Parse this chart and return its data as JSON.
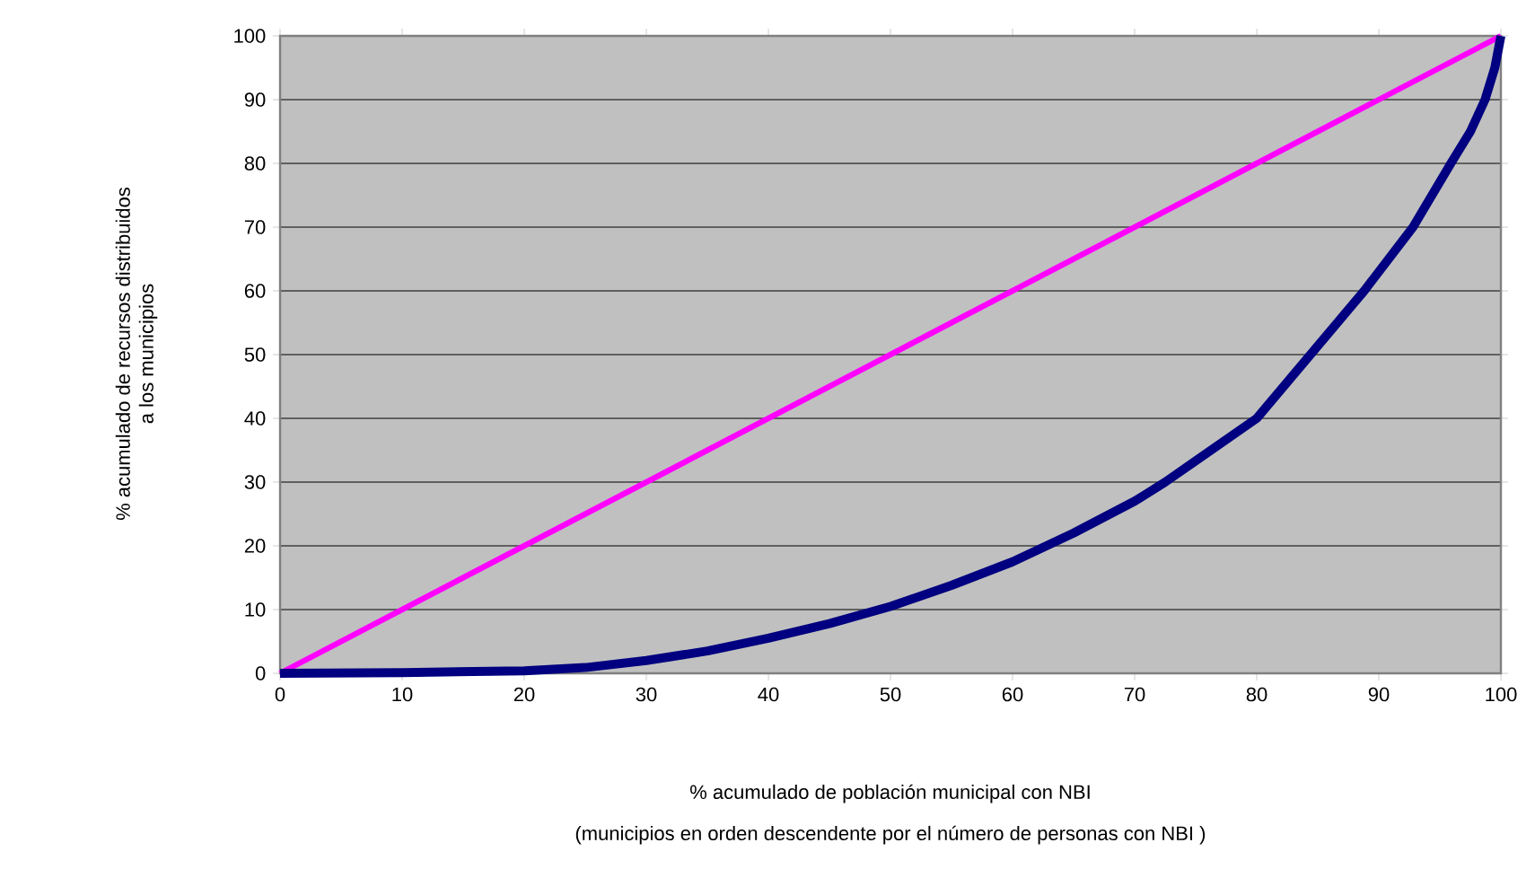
{
  "chart_data": {
    "type": "line",
    "xlabel": "% acumulado de población municipal con NBI",
    "ylabel": "%  acumulado de recursos distribuidos a los municipios",
    "annotations": [
      "(municipios en orden descendente por el número de personas con NBI )"
    ],
    "series": [
      {
        "color": "#ff00ff",
        "x": [
          0,
          100
        ],
        "values": [
          0,
          100
        ]
      },
      {
        "color": "#000080",
        "x": [
          0,
          10,
          20,
          25,
          30,
          35,
          40,
          45,
          50,
          55,
          60,
          65,
          70,
          72.5,
          80,
          84.4,
          88.8,
          92.8,
          95.9,
          97.5,
          98.7,
          99.5,
          100
        ],
        "values": [
          0,
          0.1,
          0.4,
          0.9,
          2,
          3.5,
          5.5,
          7.8,
          10.5,
          13.8,
          17.5,
          22,
          27,
          30,
          40,
          50,
          60,
          70,
          80,
          85,
          90,
          95,
          100
        ]
      }
    ],
    "xlim": [
      0,
      100
    ],
    "ylim": [
      0,
      100
    ],
    "xticks": [
      0,
      10,
      20,
      30,
      40,
      50,
      60,
      70,
      80,
      90,
      100
    ],
    "yticks": [
      0,
      10,
      20,
      30,
      40,
      50,
      60,
      70,
      80,
      90,
      100
    ],
    "grid": "y",
    "marker": "none",
    "line_style": "solid"
  }
}
